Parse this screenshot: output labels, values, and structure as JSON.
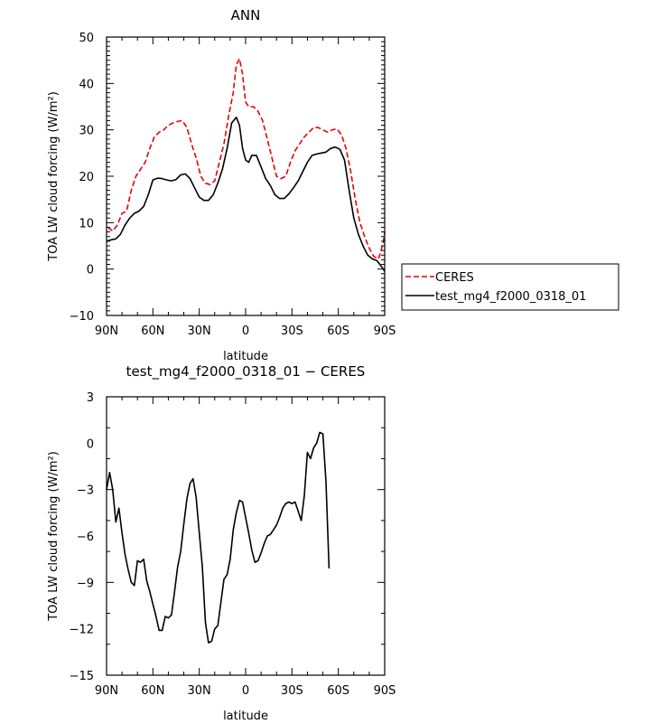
{
  "chart_data": [
    {
      "type": "line",
      "title": "ANN",
      "xlabel": "latitude",
      "ylabel": "TOA LW cloud forcing (W/m²)",
      "xlim": [
        90,
        -90
      ],
      "ylim": [
        -10,
        50
      ],
      "x_ticks": [
        90,
        60,
        30,
        0,
        -30,
        -60,
        -90
      ],
      "x_tick_labels": [
        "90N",
        "60N",
        "30N",
        "0",
        "30S",
        "60S",
        "90S"
      ],
      "y_ticks": [
        -10,
        0,
        10,
        20,
        30,
        40,
        50
      ],
      "y_tick_labels": [
        "−10",
        "0",
        "10",
        "20",
        "30",
        "40",
        "50"
      ],
      "legend_position": "right",
      "series": [
        {
          "name": "CERES",
          "color": "#e8000b",
          "style": "dashed",
          "points": [
            [
              89,
              9
            ],
            [
              86,
              8.2
            ],
            [
              83,
              9.5
            ],
            [
              80,
              12
            ],
            [
              77,
              12.5
            ],
            [
              74,
              17
            ],
            [
              71,
              20
            ],
            [
              68,
              21.5
            ],
            [
              65,
              23
            ],
            [
              62,
              26
            ],
            [
              59,
              28.5
            ],
            [
              56,
              29.5
            ],
            [
              53,
              30
            ],
            [
              50,
              31
            ],
            [
              47,
              31.5
            ],
            [
              44,
              31.8
            ],
            [
              41,
              32
            ],
            [
              38,
              30.5
            ],
            [
              35,
              27
            ],
            [
              32,
              24
            ],
            [
              29,
              20
            ],
            [
              26,
              18.5
            ],
            [
              23,
              18.2
            ],
            [
              20,
              19
            ],
            [
              17,
              23
            ],
            [
              14,
              27
            ],
            [
              11,
              33
            ],
            [
              8,
              38
            ],
            [
              6,
              44
            ],
            [
              4,
              45.3
            ],
            [
              2,
              42
            ],
            [
              0,
              36
            ],
            [
              -2,
              35
            ],
            [
              -5,
              35
            ],
            [
              -8,
              34
            ],
            [
              -11,
              32
            ],
            [
              -14,
              28
            ],
            [
              -17,
              24
            ],
            [
              -20,
              20
            ],
            [
              -23,
              19.5
            ],
            [
              -26,
              20
            ],
            [
              -29,
              23
            ],
            [
              -32,
              25.5
            ],
            [
              -35,
              27
            ],
            [
              -38,
              28.5
            ],
            [
              -41,
              29.5
            ],
            [
              -44,
              30.5
            ],
            [
              -47,
              30.5
            ],
            [
              -50,
              30
            ],
            [
              -53,
              29.5
            ],
            [
              -56,
              30
            ],
            [
              -59,
              30.2
            ],
            [
              -62,
              29
            ],
            [
              -65,
              26
            ],
            [
              -68,
              21
            ],
            [
              -71,
              15
            ],
            [
              -74,
              10
            ],
            [
              -77,
              7
            ],
            [
              -80,
              4.5
            ],
            [
              -83,
              2.7
            ],
            [
              -86,
              2.2
            ],
            [
              -89,
              5.5
            ],
            [
              -90,
              8
            ]
          ]
        },
        {
          "name": "test_mg4_f2000_0318_01",
          "color": "#000000",
          "style": "solid",
          "points": [
            [
              90,
              6
            ],
            [
              87,
              6.3
            ],
            [
              84,
              6.5
            ],
            [
              81,
              7.5
            ],
            [
              78,
              9.5
            ],
            [
              75,
              11
            ],
            [
              72,
              12
            ],
            [
              69,
              12.5
            ],
            [
              66,
              13.5
            ],
            [
              63,
              16
            ],
            [
              60,
              19.2
            ],
            [
              57,
              19.6
            ],
            [
              54,
              19.5
            ],
            [
              51,
              19.2
            ],
            [
              48,
              19
            ],
            [
              45,
              19.3
            ],
            [
              42,
              20.3
            ],
            [
              39,
              20.5
            ],
            [
              36,
              19.5
            ],
            [
              33,
              17.5
            ],
            [
              30,
              15.5
            ],
            [
              27,
              14.8
            ],
            [
              24,
              14.8
            ],
            [
              21,
              16
            ],
            [
              18,
              18.5
            ],
            [
              15,
              21.5
            ],
            [
              12,
              26
            ],
            [
              9,
              31.5
            ],
            [
              6,
              32.7
            ],
            [
              4,
              31
            ],
            [
              2,
              26
            ],
            [
              0,
              23.5
            ],
            [
              -2,
              23
            ],
            [
              -4,
              24.5
            ],
            [
              -7,
              24.5
            ],
            [
              -10,
              22
            ],
            [
              -13,
              19.5
            ],
            [
              -16,
              18
            ],
            [
              -19,
              16
            ],
            [
              -22,
              15.2
            ],
            [
              -25,
              15.2
            ],
            [
              -28,
              16.2
            ],
            [
              -31,
              17.5
            ],
            [
              -34,
              19
            ],
            [
              -37,
              21
            ],
            [
              -40,
              23
            ],
            [
              -43,
              24.5
            ],
            [
              -46,
              24.8
            ],
            [
              -49,
              25
            ],
            [
              -52,
              25.2
            ],
            [
              -55,
              26
            ],
            [
              -58,
              26.3
            ],
            [
              -61,
              25.8
            ],
            [
              -64,
              23.5
            ],
            [
              -67,
              17
            ],
            [
              -70,
              11
            ],
            [
              -73,
              7.5
            ],
            [
              -76,
              5
            ],
            [
              -79,
              3
            ],
            [
              -82,
              2.2
            ],
            [
              -85,
              1.8
            ],
            [
              -88,
              0.5
            ],
            [
              -90,
              -0.5
            ]
          ]
        }
      ]
    },
    {
      "type": "line",
      "title": "test_mg4_f2000_0318_01 − CERES",
      "xlabel": "latitude",
      "ylabel": "TOA LW cloud forcing (W/m²)",
      "xlim": [
        90,
        -90
      ],
      "ylim": [
        -15,
        3
      ],
      "x_ticks": [
        90,
        60,
        30,
        0,
        -30,
        -60,
        -90
      ],
      "x_tick_labels": [
        "90N",
        "60N",
        "30N",
        "0",
        "30S",
        "60S",
        "90S"
      ],
      "y_ticks": [
        -15,
        -12,
        -9,
        -6,
        -3,
        0,
        3
      ],
      "y_tick_labels": [
        "−15",
        "−12",
        "−9",
        "−6",
        "−3",
        "0",
        "3"
      ],
      "series": [
        {
          "color": "#000000",
          "style": "solid",
          "points": [
            [
              90,
              -3
            ],
            [
              88,
              -1.9
            ],
            [
              86,
              -3
            ],
            [
              84,
              -5.1
            ],
            [
              82,
              -4.2
            ],
            [
              80,
              -5.8
            ],
            [
              78,
              -7.2
            ],
            [
              76,
              -8.2
            ],
            [
              74,
              -9
            ],
            [
              72,
              -9.2
            ],
            [
              70,
              -7.6
            ],
            [
              68,
              -7.7
            ],
            [
              66,
              -7.5
            ],
            [
              64,
              -8.9
            ],
            [
              62,
              -9.6
            ],
            [
              60,
              -10.4
            ],
            [
              58,
              -11.2
            ],
            [
              56,
              -12.1
            ],
            [
              54,
              -12.1
            ],
            [
              52,
              -11.2
            ],
            [
              50,
              -11.3
            ],
            [
              48,
              -11.1
            ],
            [
              46,
              -9.6
            ],
            [
              44,
              -8
            ],
            [
              42,
              -7
            ],
            [
              40,
              -5.2
            ],
            [
              38,
              -3.6
            ],
            [
              36,
              -2.6
            ],
            [
              34,
              -2.3
            ],
            [
              32,
              -3.5
            ],
            [
              30,
              -5.8
            ],
            [
              28,
              -8
            ],
            [
              26,
              -11.6
            ],
            [
              24,
              -12.9
            ],
            [
              22,
              -12.8
            ],
            [
              20,
              -12
            ],
            [
              18,
              -11.8
            ],
            [
              16,
              -10.3
            ],
            [
              14,
              -8.8
            ],
            [
              12,
              -8.5
            ],
            [
              10,
              -7.5
            ],
            [
              8,
              -5.6
            ],
            [
              6,
              -4.5
            ],
            [
              4,
              -3.7
            ],
            [
              2,
              -3.8
            ],
            [
              0,
              -4.8
            ],
            [
              -2,
              -5.8
            ],
            [
              -4,
              -6.9
            ],
            [
              -6,
              -7.7
            ],
            [
              -8,
              -7.6
            ],
            [
              -10,
              -7.1
            ],
            [
              -12,
              -6.5
            ],
            [
              -14,
              -6
            ],
            [
              -16,
              -5.9
            ],
            [
              -18,
              -5.6
            ],
            [
              -20,
              -5.3
            ],
            [
              -22,
              -4.8
            ],
            [
              -24,
              -4.2
            ],
            [
              -26,
              -3.9
            ],
            [
              -28,
              -3.8
            ],
            [
              -30,
              -3.9
            ],
            [
              -32,
              -3.8
            ],
            [
              -34,
              -4.4
            ],
            [
              -36,
              -5
            ],
            [
              -38,
              -3.4
            ],
            [
              -40,
              -0.6
            ],
            [
              -42,
              -1
            ],
            [
              -44,
              -0.3
            ],
            [
              -46,
              0
            ],
            [
              -48,
              0.7
            ],
            [
              -50,
              0.6
            ],
            [
              -52,
              -2.5
            ],
            [
              -54,
              -8.1
            ]
          ]
        }
      ]
    }
  ]
}
